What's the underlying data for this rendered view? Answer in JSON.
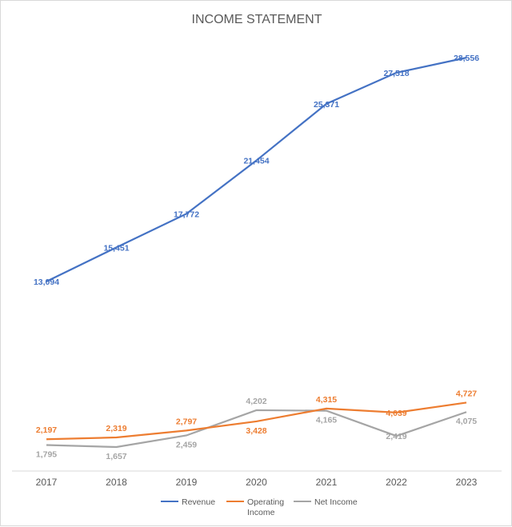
{
  "chart_data": {
    "type": "line",
    "title": "INCOME STATEMENT",
    "categories": [
      "2017",
      "2018",
      "2019",
      "2020",
      "2021",
      "2022",
      "2023"
    ],
    "series": [
      {
        "name": "Revenue",
        "color": "#4472c4",
        "values": [
          13094,
          15451,
          17772,
          21454,
          25371,
          27518,
          28556
        ],
        "labels": [
          "13,094",
          "15,451",
          "17,772",
          "21,454",
          "25,371",
          "27,518",
          "28,556"
        ]
      },
      {
        "name": "Operating Income",
        "color": "#ed7d31",
        "values": [
          2197,
          2319,
          2797,
          3428,
          4315,
          4039,
          4727
        ],
        "labels": [
          "2,197",
          "2,319",
          "2,797",
          "3,428",
          "4,315",
          "4,039",
          "4,727"
        ]
      },
      {
        "name": "Net Income",
        "color": "#a5a5a5",
        "values": [
          1795,
          1657,
          2459,
          4202,
          4165,
          2419,
          4075
        ],
        "labels": [
          "1,795",
          "1,657",
          "2,459",
          "4,202",
          "4,165",
          "2,419",
          "4,075"
        ]
      }
    ],
    "legend_position": "bottom",
    "grid": false,
    "data_labels": true
  }
}
